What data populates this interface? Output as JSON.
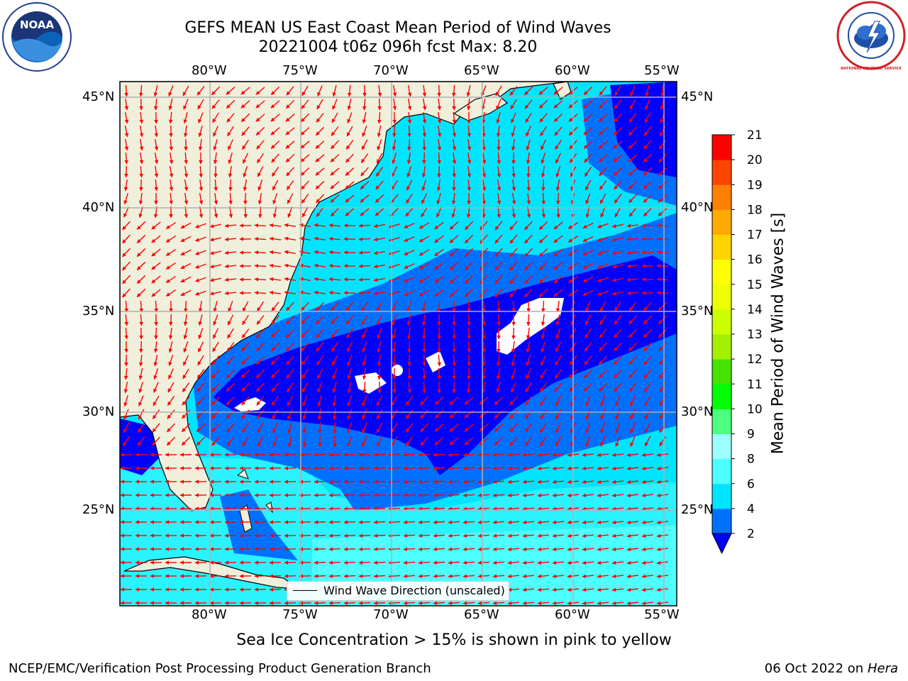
{
  "title": {
    "line1": "GEFS MEAN US East Coast Mean Period of Wind Waves",
    "line2": "20221004 t06z 096h fcst   Max: 8.20"
  },
  "map": {
    "lon_labels": [
      "80°W",
      "75°W",
      "70°W",
      "65°W",
      "60°W",
      "55°W"
    ],
    "lat_labels": [
      "45°N",
      "40°N",
      "35°N",
      "30°N",
      "25°N"
    ],
    "lon_range": [
      -85,
      -54.5
    ],
    "lat_range": [
      20.5,
      46.5
    ],
    "land_color": "#efefdb",
    "gridline_color": "#b0b0b0",
    "vector_color": "#ff0000"
  },
  "legend": {
    "label": "Wind Wave Direction (unscaled)"
  },
  "colorbar": {
    "title": "Mean Period of Wind Waves [s]",
    "ticks": [
      "2",
      "4",
      "6",
      "8",
      "9",
      "10",
      "11",
      "12",
      "13",
      "14",
      "15",
      "16",
      "17",
      "18",
      "19",
      "20",
      "21"
    ],
    "colors": [
      "#0071ff",
      "#00e5ff",
      "#4dffff",
      "#9cffff",
      "#4cff7f",
      "#00ff00",
      "#46e300",
      "#a3f000",
      "#ccff00",
      "#eeff00",
      "#ffff00",
      "#ffd300",
      "#ffaa00",
      "#ff8000",
      "#ff4400",
      "#ff0000"
    ],
    "under_color": "#0000ff"
  },
  "logos": {
    "left": "NOAA",
    "right": "NATIONAL WEATHER SERVICE"
  },
  "note": "Sea Ice Concentration > 15% is shown in pink to yellow",
  "footer": {
    "left": "NCEP/EMC/Verification Post Processing Product Generation Branch",
    "right_date": "06 Oct 2022 on",
    "right_host": "Hera"
  }
}
